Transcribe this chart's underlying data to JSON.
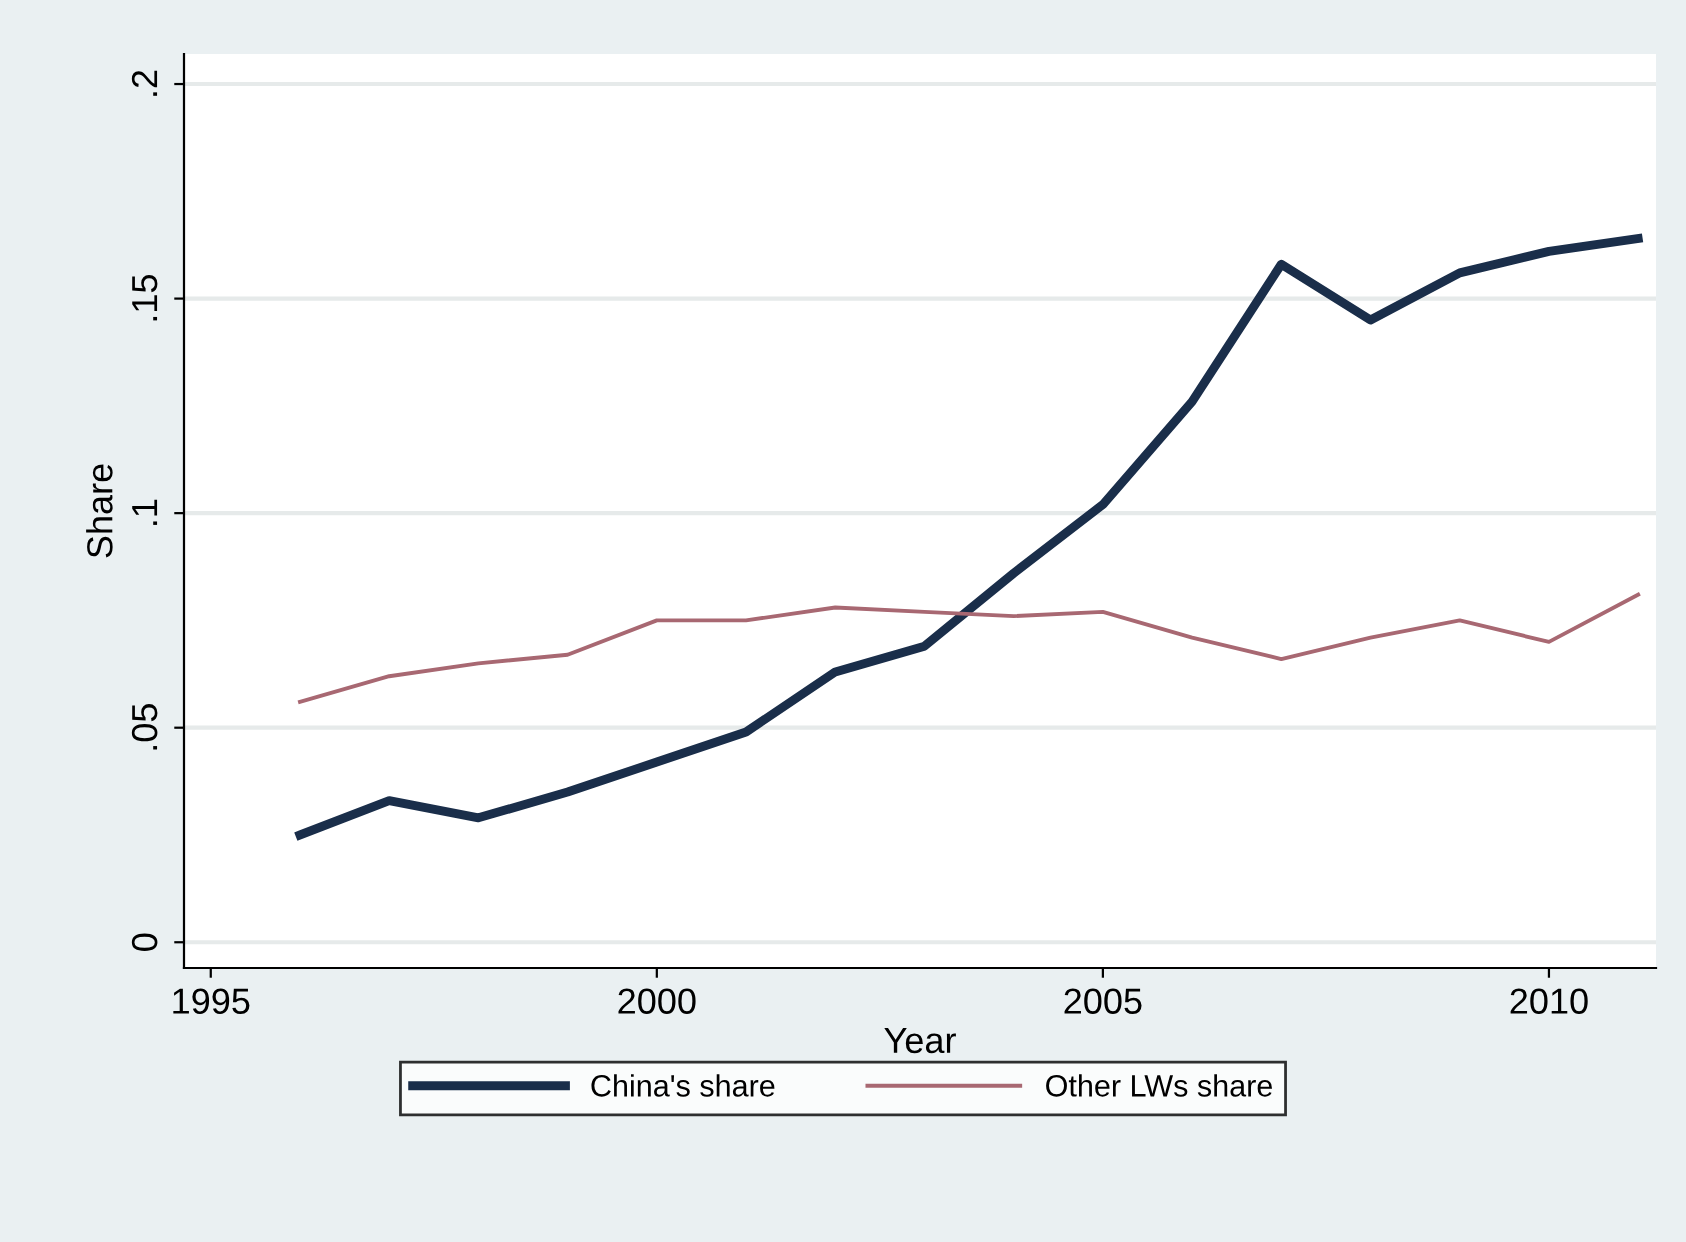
{
  "chart_data": {
    "type": "line",
    "xlabel": "Year",
    "ylabel": "Share",
    "x": [
      1996,
      1997,
      1998,
      1999,
      2000,
      2001,
      2002,
      2003,
      2004,
      2005,
      2006,
      2007,
      2008,
      2009,
      2010,
      2011
    ],
    "series": [
      {
        "name": "China's share",
        "color": "#1a2e4a",
        "values": [
          0.025,
          0.033,
          0.029,
          0.035,
          0.042,
          0.049,
          0.063,
          0.069,
          0.086,
          0.102,
          0.126,
          0.158,
          0.145,
          0.156,
          0.161,
          0.164
        ]
      },
      {
        "name": "Other LWs share",
        "color": "#a86872",
        "values": [
          0.056,
          0.062,
          0.065,
          0.067,
          0.075,
          0.075,
          0.078,
          0.077,
          0.076,
          0.077,
          0.071,
          0.066,
          0.071,
          0.075,
          0.07,
          0.081
        ]
      }
    ],
    "xlim": [
      1994.7,
      2011.2
    ],
    "ylim": [
      -0.006,
      0.207
    ],
    "xticks": [
      1995,
      2000,
      2005,
      2010
    ],
    "yticks": [
      {
        "value": 0,
        "label": "0"
      },
      {
        "value": 0.05,
        "label": ".05"
      },
      {
        "value": 0.1,
        "label": ".1"
      },
      {
        "value": 0.15,
        "label": ".15"
      },
      {
        "value": 0.2,
        "label": ".2"
      }
    ],
    "grid": "y",
    "legend": "bottom",
    "marker": "none",
    "line_style": "solid"
  }
}
